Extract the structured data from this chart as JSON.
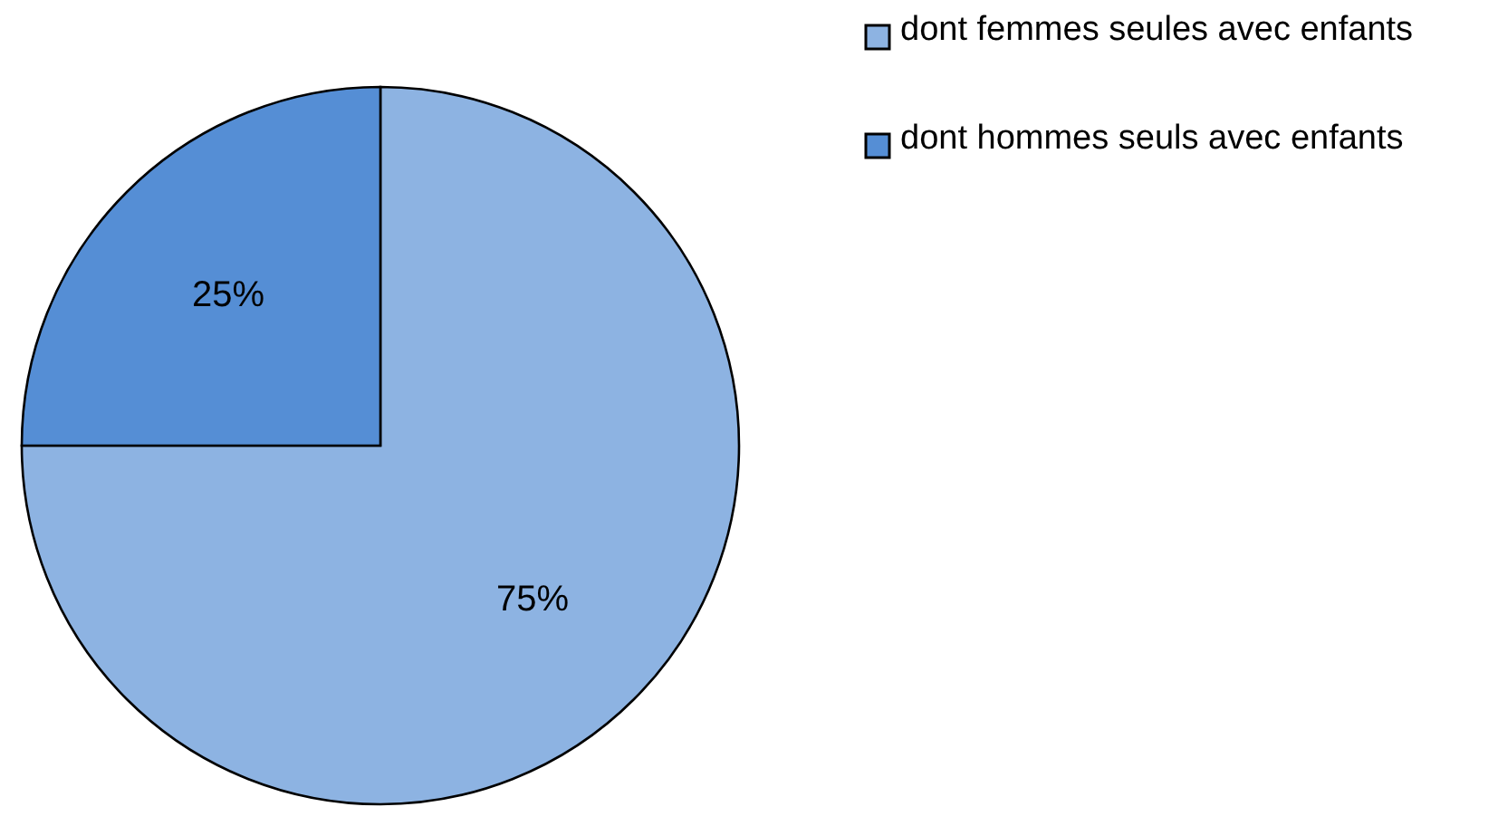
{
  "chart_data": {
    "type": "pie",
    "categories": [
      "dont femmes seules avec enfants",
      "dont hommes seuls avec enfants"
    ],
    "values": [
      75,
      25
    ],
    "colors": [
      "#8db3e2",
      "#558ed5"
    ],
    "value_labels": [
      "75%",
      "25%"
    ],
    "legend": "top right"
  }
}
